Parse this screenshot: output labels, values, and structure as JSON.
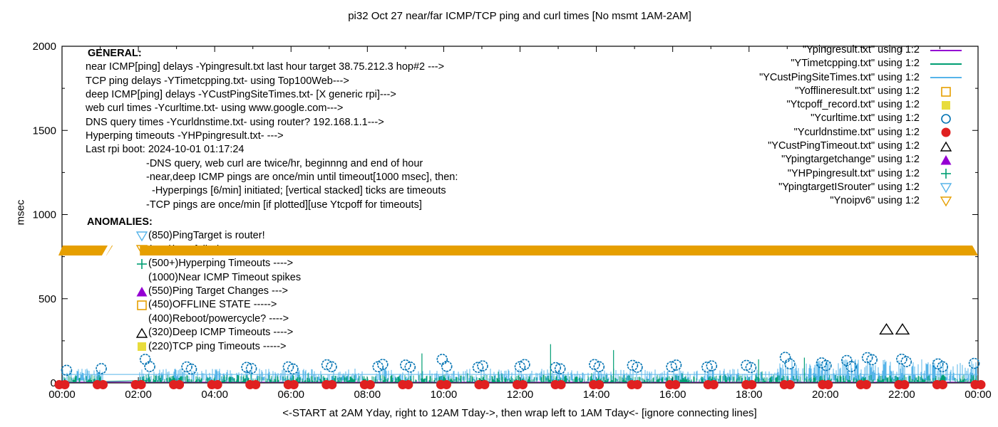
{
  "title": "pi32 Oct 27  near/far ICMP/TCP ping and curl times [No msmt 1AM-2AM]",
  "ylabel": "msec",
  "xlabel": "<-START at 2AM Yday, right to 12AM Tday->, then wrap left to 1AM Tday<- [ignore connecting lines]",
  "colors": {
    "purple": "#9400d3",
    "teal": "#009e73",
    "skyblue": "#56b4e9",
    "orange": "#e69f00",
    "yellow": "#e8dc3c",
    "blue": "#0072b2",
    "red": "#e02020",
    "black": "#000000"
  },
  "general": {
    "header": "GENERAL:",
    "lines": [
      {
        "text": "near ICMP[ping] delays -Ypingresult.txt last hour target 38.75.212.3 hop#2 --->",
        "indent": 0
      },
      {
        "text": "TCP ping delays -YTimetcpping.txt- using Top100Web--->",
        "indent": 0
      },
      {
        "text": "deep ICMP[ping] delays -YCustPingSiteTimes.txt- [X generic rpi]--->",
        "indent": 0
      },
      {
        "text": "web curl times -Ycurltime.txt- using www.google.com--->",
        "indent": 0
      },
      {
        "text": "DNS query times -Ycurldnstime.txt- using router? 192.168.1.1--->",
        "indent": 0
      },
      {
        "text": "Hyperping timeouts -YHPpingresult.txt- --->",
        "indent": 0
      },
      {
        "text": "Last rpi boot: 2024-10-01 01:17:24",
        "indent": 0
      },
      {
        "text": "-DNS query, web curl are twice/hr, beginnng and end of hour",
        "indent": 1
      },
      {
        "text": "-near,deep ICMP pings are once/min until timeout[1000 msec], then:",
        "indent": 1
      },
      {
        "text": "-Hyperpings [6/min] initiated; [vertical stacked] ticks are timeouts",
        "indent": 2
      },
      {
        "text": "-TCP pings are once/min [if plotted][use Ytcpoff for timeouts]",
        "indent": 1
      }
    ]
  },
  "anomalies": {
    "header": "ANOMALIES:",
    "lines": [
      {
        "marker": "tri-down-open",
        "color": "skyblue",
        "text": "(850)PingTarget is router!"
      },
      {
        "marker": "tri-down-open",
        "color": "orange",
        "text": "(775)ipv6 failed --->"
      },
      {
        "marker": "plus",
        "color": "teal",
        "text": "(500+)Hyperping Timeouts ---->"
      },
      {
        "marker": "none",
        "color": "black",
        "text": "(1000)Near ICMP Timeout spikes"
      },
      {
        "marker": "tri-up-filled",
        "color": "purple",
        "text": "(550)Ping Target Changes --->"
      },
      {
        "marker": "square-open",
        "color": "orange",
        "text": "(450)OFFLINE STATE ----->"
      },
      {
        "marker": "none",
        "color": "black",
        "text": "(400)Reboot/powercycle? ---->"
      },
      {
        "marker": "tri-up-open",
        "color": "black",
        "text": "(320)Deep ICMP Timeouts ---->"
      },
      {
        "marker": "square-filled",
        "color": "yellow",
        "text": "(220)TCP ping Timeouts ----->"
      }
    ]
  },
  "legend": [
    {
      "label": "\"Ypingresult.txt\" using 1:2",
      "symbol": "line",
      "color": "purple"
    },
    {
      "label": "\"YTimetcpping.txt\" using 1:2",
      "symbol": "line",
      "color": "teal"
    },
    {
      "label": "\"YCustPingSiteTimes.txt\" using 1:2",
      "symbol": "line",
      "color": "skyblue"
    },
    {
      "label": "\"Yofflineresult.txt\" using 1:2",
      "symbol": "square-open",
      "color": "orange"
    },
    {
      "label": "\"Ytcpoff_record.txt\" using 1:2",
      "symbol": "square-filled",
      "color": "yellow"
    },
    {
      "label": "\"Ycurltime.txt\" using 1:2",
      "symbol": "circle-open",
      "color": "blue"
    },
    {
      "label": "\"Ycurldnstime.txt\" using 1:2",
      "symbol": "circle-filled",
      "color": "red"
    },
    {
      "label": "\"YCustPingTimeout.txt\" using 1:2",
      "symbol": "tri-up-open",
      "color": "black"
    },
    {
      "label": "\"Ypingtargetchange\" using 1:2",
      "symbol": "tri-up-filled",
      "color": "purple"
    },
    {
      "label": "\"YHPpingresult.txt\" using 1:2",
      "symbol": "plus",
      "color": "teal"
    },
    {
      "label": "\"YpingtargetISrouter\" using 1:2",
      "symbol": "tri-down-open",
      "color": "skyblue"
    },
    {
      "label": "\"Ynoipv6\" using 1:2",
      "symbol": "tri-down-open",
      "color": "orange"
    }
  ],
  "chart_data": {
    "type": "line",
    "title": "pi32 Oct 27  near/far ICMP/TCP ping and curl times [No msmt 1AM-2AM]",
    "xlabel": "<-START at 2AM Yday, right to 12AM Tday->, then wrap left to 1AM Tday<- [ignore connecting lines]",
    "ylabel": "msec",
    "x_axis": {
      "hours_span": 24,
      "tick_labels": [
        "00:00",
        "02:00",
        "04:00",
        "06:00",
        "08:00",
        "10:00",
        "12:00",
        "14:00",
        "16:00",
        "18:00",
        "20:00",
        "22:00",
        "00:00"
      ],
      "minor_tick_every_hours": 1
    },
    "y_axis": {
      "min": 0,
      "max": 2000,
      "tick_labels": [
        "0",
        "500",
        "1000",
        "1500",
        "2000"
      ],
      "tick_values": [
        0,
        500,
        1000,
        1500,
        2000
      ],
      "minor_step": 250
    },
    "measurement_gap_hours": [
      1.08,
      2.0
    ],
    "series": [
      {
        "name": "Ypingresult.txt",
        "type": "line",
        "color": "purple",
        "summary": "near ICMP ping delays, flat near 5 msec all day",
        "baseline_msec": 5
      },
      {
        "name": "YTimetcpping.txt",
        "type": "noise-line",
        "color": "teal",
        "range_msec": [
          0,
          48
        ],
        "spikes": [
          [
            9.43,
            175
          ],
          [
            12.8,
            230
          ],
          [
            14.45,
            195
          ],
          [
            18.25,
            140
          ],
          [
            19.45,
            150
          ]
        ]
      },
      {
        "name": "YCustPingSiteTimes.txt",
        "type": "noise-line",
        "color": "skyblue",
        "range_msec": [
          18,
          85
        ],
        "baseline_msec": 50,
        "late_from_hour": 18.8,
        "late_range_msec": [
          20,
          140
        ]
      },
      {
        "name": "Ycurltime.txt",
        "type": "scatter-circle-open",
        "color": "blue",
        "points_hour_msec": [
          [
            0.12,
            75
          ],
          [
            1.03,
            85
          ],
          [
            2.18,
            140
          ],
          [
            2.3,
            97
          ],
          [
            3.27,
            95
          ],
          [
            3.39,
            82
          ],
          [
            4.84,
            92
          ],
          [
            4.96,
            86
          ],
          [
            5.93,
            95
          ],
          [
            6.05,
            83
          ],
          [
            6.94,
            108
          ],
          [
            7.06,
            96
          ],
          [
            8.28,
            96
          ],
          [
            8.4,
            110
          ],
          [
            9.0,
            106
          ],
          [
            9.12,
            94
          ],
          [
            9.96,
            140
          ],
          [
            10.08,
            98
          ],
          [
            10.9,
            92
          ],
          [
            11.02,
            101
          ],
          [
            12.0,
            96
          ],
          [
            12.12,
            109
          ],
          [
            12.93,
            91
          ],
          [
            13.05,
            84
          ],
          [
            13.95,
            109
          ],
          [
            14.07,
            96
          ],
          [
            14.95,
            104
          ],
          [
            15.07,
            93
          ],
          [
            15.97,
            96
          ],
          [
            16.09,
            106
          ],
          [
            16.9,
            94
          ],
          [
            17.02,
            101
          ],
          [
            17.93,
            104
          ],
          [
            18.05,
            91
          ],
          [
            18.95,
            152
          ],
          [
            19.07,
            113
          ],
          [
            19.9,
            119
          ],
          [
            20.02,
            103
          ],
          [
            20.56,
            133
          ],
          [
            20.68,
            97
          ],
          [
            21.1,
            150
          ],
          [
            21.22,
            138
          ],
          [
            22.0,
            141
          ],
          [
            22.12,
            126
          ],
          [
            22.95,
            113
          ],
          [
            23.07,
            96
          ],
          [
            23.9,
            116
          ]
        ]
      },
      {
        "name": "Ycurldnstime.txt",
        "type": "scatter-circle-filled",
        "color": "red",
        "summary": "pairs of dots at every hour mark",
        "hours": [
          0,
          1,
          2,
          3,
          4,
          5,
          6,
          7,
          8,
          9,
          10,
          11,
          12,
          13,
          14,
          15,
          16,
          17,
          18,
          19,
          20,
          21,
          22,
          23,
          24
        ],
        "value_msec": 2
      },
      {
        "name": "YCustPingTimeout.txt",
        "type": "scatter-triangle-open",
        "color": "black",
        "points_hour_msec": [
          [
            21.6,
            320
          ],
          [
            22.02,
            320
          ]
        ]
      },
      {
        "name": "Ynoipv6",
        "type": "band",
        "color": "orange",
        "value_msec": 775,
        "segments_hours": [
          [
            0,
            1.33
          ],
          [
            2.04,
            24
          ]
        ],
        "notch_hour": 1.12
      }
    ],
    "connector_line": {
      "color": "teal",
      "points_hour_msec": [
        [
          1.05,
          8
        ],
        [
          1.7,
          12
        ],
        [
          2.3,
          16
        ]
      ],
      "note": "ignore connecting lines"
    }
  }
}
